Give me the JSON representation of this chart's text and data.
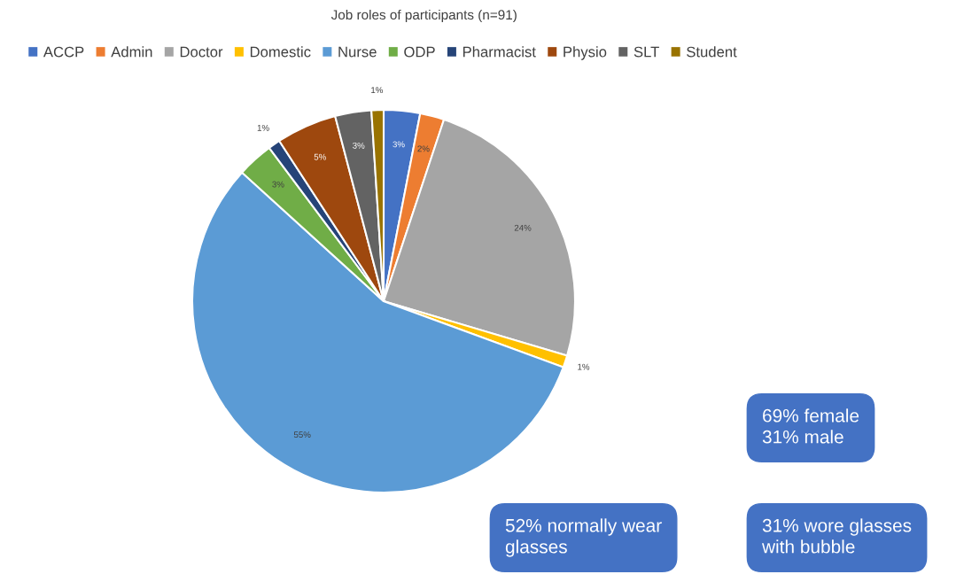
{
  "chart_data": {
    "type": "pie",
    "title": "Job roles of participants (n=91)",
    "categories": [
      "ACCP",
      "Admin",
      "Doctor",
      "Domestic",
      "Nurse",
      "ODP",
      "Pharmacist",
      "Physio",
      "SLT",
      "Student"
    ],
    "values": [
      3,
      2,
      24,
      1,
      55,
      3,
      1,
      5,
      3,
      1
    ],
    "colors": [
      "#4472c4",
      "#ed7d31",
      "#a5a5a5",
      "#ffc000",
      "#5b9bd5",
      "#70ad47",
      "#264478",
      "#9e480e",
      "#636363",
      "#997300"
    ],
    "value_labels": [
      "3%",
      "2%",
      "24%",
      "1%",
      "55%",
      "3%",
      "1%",
      "5%",
      "3%",
      "1%"
    ],
    "legend": "top",
    "annotations": [
      "69% female\n31% male",
      "52% normally wear\nglasses",
      "31% wore glasses\nwith bubble"
    ]
  }
}
